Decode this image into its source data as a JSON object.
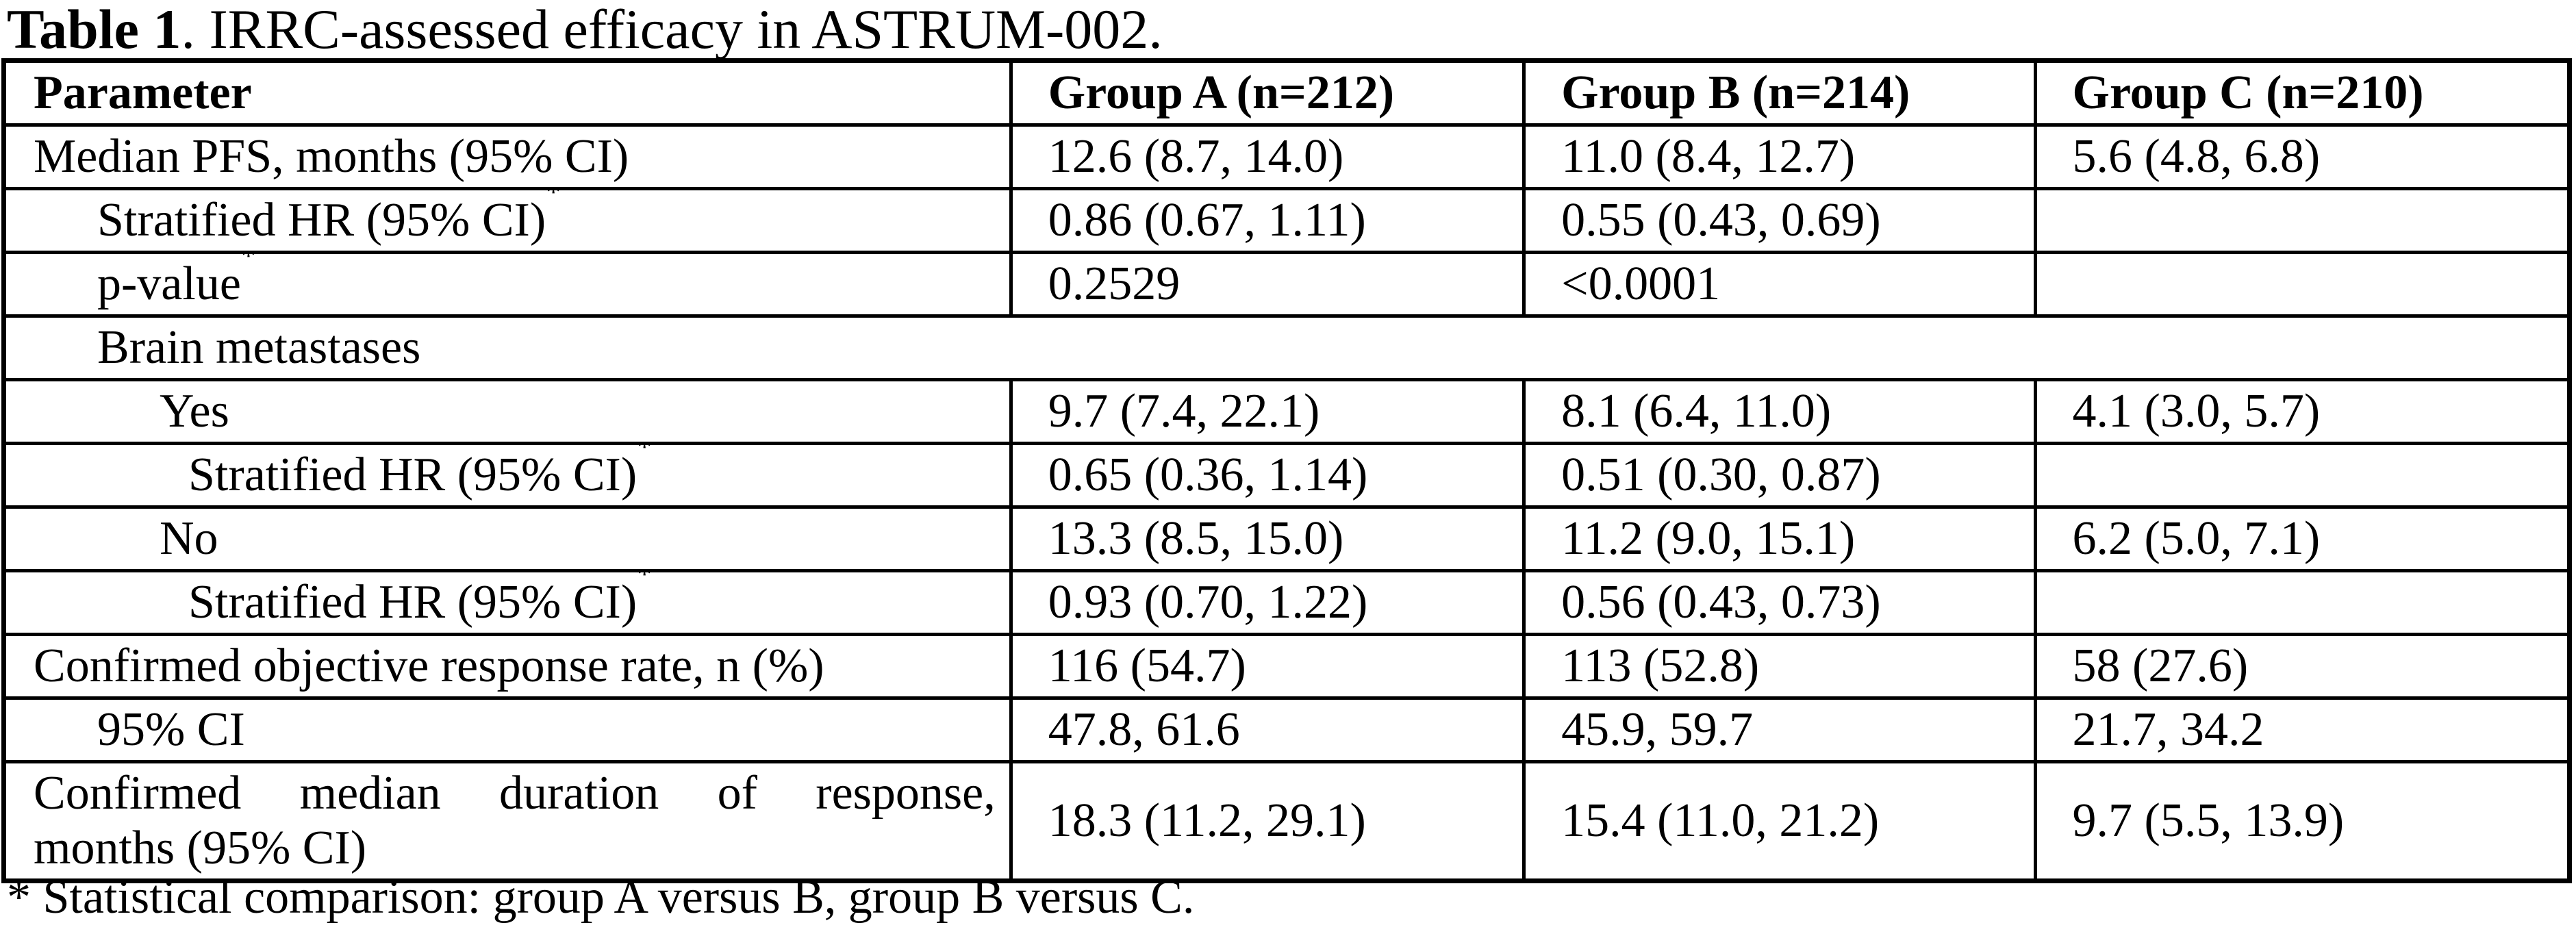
{
  "page": {
    "background_color": "#ffffff",
    "text_color": "#000000"
  },
  "title": {
    "bold": "Table 1",
    "rest": ". IRRC-assessed efficacy in ASTRUM-002."
  },
  "table": {
    "columns": [
      "Parameter",
      "Group A (n=212)",
      "Group B (n=214)",
      "Group C (n=210)"
    ],
    "rows": [
      {
        "indent": 0,
        "label": "Median PFS, months (95% CI)",
        "sup": false,
        "cells": [
          "12.6 (8.7, 14.0)",
          "11.0 (8.4, 12.7)",
          "5.6 (4.8, 6.8)"
        ]
      },
      {
        "indent": 1,
        "label": "Stratified HR (95% CI)",
        "sup": true,
        "cells": [
          "0.86 (0.67, 1.11)",
          "0.55 (0.43, 0.69)",
          ""
        ]
      },
      {
        "indent": 1,
        "label": "p-value",
        "sup": true,
        "cells": [
          "0.2529",
          "<0.0001",
          ""
        ]
      },
      {
        "indent": 1,
        "label": "Brain metastases",
        "sup": false,
        "merged": true,
        "cells": []
      },
      {
        "indent": 2,
        "label": "Yes",
        "sup": false,
        "cells": [
          "9.7 (7.4, 22.1)",
          "8.1 (6.4, 11.0)",
          "4.1 (3.0, 5.7)"
        ]
      },
      {
        "indent": 3,
        "label": "Stratified HR (95% CI)",
        "sup": true,
        "cells": [
          "0.65 (0.36, 1.14)",
          "0.51 (0.30, 0.87)",
          ""
        ]
      },
      {
        "indent": 2,
        "label": "No",
        "sup": false,
        "cells": [
          "13.3 (8.5, 15.0)",
          "11.2 (9.0, 15.1)",
          "6.2 (5.0, 7.1)"
        ]
      },
      {
        "indent": 3,
        "label": "Stratified HR (95% CI)",
        "sup": true,
        "cells": [
          "0.93 (0.70, 1.22)",
          "0.56 (0.43, 0.73)",
          ""
        ]
      },
      {
        "indent": 0,
        "label": "Confirmed objective response rate, n (%)",
        "sup": false,
        "cells": [
          "116 (54.7)",
          "113 (52.8)",
          "58 (27.6)"
        ]
      },
      {
        "indent": 1,
        "label": "95% CI",
        "sup": false,
        "cells": [
          "47.8, 61.6",
          "45.9, 59.7",
          "21.7, 34.2"
        ]
      },
      {
        "indent": 0,
        "label_lines": [
          "Confirmed median duration of response,",
          "months (95% CI)"
        ],
        "sup": false,
        "justify": true,
        "cells": [
          "18.3 (11.2, 29.1)",
          "15.4 (11.0, 21.2)",
          "9.7 (5.5, 13.9)"
        ]
      }
    ]
  },
  "footnote": "* Statistical comparison: group A versus B, group B versus C."
}
